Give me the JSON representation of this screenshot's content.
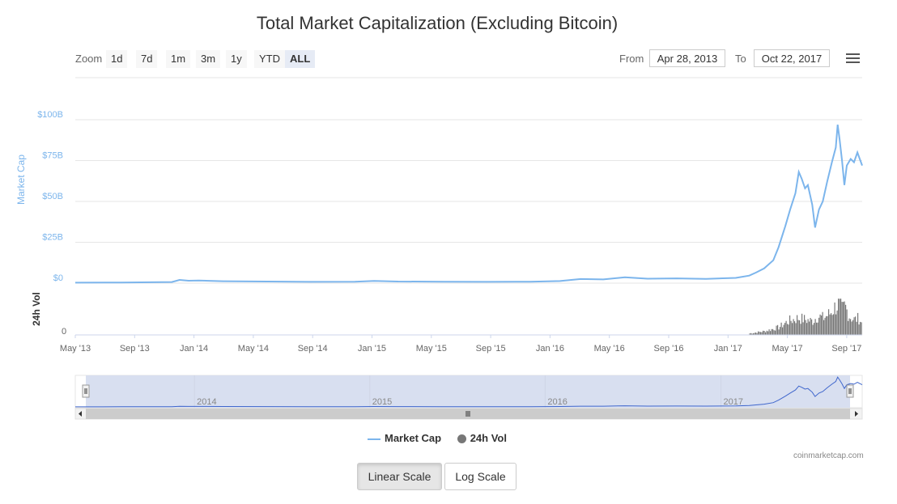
{
  "title": "Total Market Capitalization (Excluding Bitcoin)",
  "zoom": {
    "label": "Zoom",
    "buttons": [
      "1d",
      "7d",
      "1m",
      "3m",
      "1y",
      "YTD",
      "ALL"
    ],
    "active": "ALL"
  },
  "range": {
    "from_label": "From",
    "from_value": "Apr 28, 2013",
    "to_label": "To",
    "to_value": "Oct 22, 2017"
  },
  "legend": {
    "market_cap": "Market Cap",
    "volume": "24h Vol"
  },
  "credit": "coinmarketcap.com",
  "scale_buttons": {
    "linear": "Linear Scale",
    "log": "Log Scale"
  },
  "colors": {
    "market_cap_line": "#7cb5ec",
    "volume_bars": "#777777",
    "navigator_fill": "#d4dbee",
    "navigator_line": "#3f66cc"
  },
  "chart_data": {
    "type": "line",
    "title": "Total Market Capitalization (Excluding Bitcoin)",
    "ylabel": "Market Cap",
    "ylabel2": "24h Vol",
    "y_ticks": [
      "$0",
      "$25B",
      "$50B",
      "$75B",
      "$100B"
    ],
    "y_tick_values": [
      0,
      25,
      50,
      75,
      100
    ],
    "ylim": [
      0,
      100
    ],
    "vol_tick": "0",
    "x_ticks": [
      "May '13",
      "Sep '13",
      "Jan '14",
      "May '14",
      "Sep '14",
      "Jan '15",
      "May '15",
      "Sep '15",
      "Jan '16",
      "May '16",
      "Sep '16",
      "Jan '17",
      "May '17",
      "Sep '17"
    ],
    "navigator_labels": [
      "2014",
      "2015",
      "2016",
      "2017"
    ],
    "x_range": [
      "2013-04-28",
      "2017-10-22"
    ],
    "series": [
      {
        "name": "Market Cap",
        "unit": "billions USD",
        "points": [
          [
            "2013-04-28",
            0.3
          ],
          [
            "2013-08-01",
            0.4
          ],
          [
            "2013-11-15",
            0.7
          ],
          [
            "2013-12-01",
            2.0
          ],
          [
            "2013-12-20",
            1.5
          ],
          [
            "2014-01-10",
            1.6
          ],
          [
            "2014-03-01",
            1.2
          ],
          [
            "2014-06-01",
            1.0
          ],
          [
            "2014-09-01",
            0.8
          ],
          [
            "2014-12-01",
            0.9
          ],
          [
            "2015-01-10",
            1.4
          ],
          [
            "2015-03-01",
            1.0
          ],
          [
            "2015-06-01",
            0.9
          ],
          [
            "2015-09-01",
            0.8
          ],
          [
            "2015-12-01",
            0.9
          ],
          [
            "2016-02-01",
            1.3
          ],
          [
            "2016-03-15",
            2.5
          ],
          [
            "2016-05-01",
            2.3
          ],
          [
            "2016-06-15",
            3.6
          ],
          [
            "2016-08-01",
            2.7
          ],
          [
            "2016-10-01",
            2.9
          ],
          [
            "2016-12-01",
            2.6
          ],
          [
            "2017-02-01",
            3.2
          ],
          [
            "2017-03-01",
            4.6
          ],
          [
            "2017-03-15",
            6.5
          ],
          [
            "2017-04-01",
            9.0
          ],
          [
            "2017-04-20",
            14.0
          ],
          [
            "2017-05-01",
            22.0
          ],
          [
            "2017-05-15",
            35.0
          ],
          [
            "2017-05-25",
            45.0
          ],
          [
            "2017-06-05",
            55.0
          ],
          [
            "2017-06-12",
            68.0
          ],
          [
            "2017-06-18",
            64.0
          ],
          [
            "2017-06-25",
            58.0
          ],
          [
            "2017-07-01",
            60.0
          ],
          [
            "2017-07-10",
            48.0
          ],
          [
            "2017-07-16",
            34.0
          ],
          [
            "2017-07-24",
            45.0
          ],
          [
            "2017-08-01",
            50.0
          ],
          [
            "2017-08-10",
            62.0
          ],
          [
            "2017-08-20",
            74.0
          ],
          [
            "2017-08-28",
            83.0
          ],
          [
            "2017-09-01",
            97.0
          ],
          [
            "2017-09-05",
            88.0
          ],
          [
            "2017-09-10",
            75.0
          ],
          [
            "2017-09-15",
            60.0
          ],
          [
            "2017-09-20",
            72.0
          ],
          [
            "2017-09-28",
            76.0
          ],
          [
            "2017-10-05",
            74.0
          ],
          [
            "2017-10-12",
            80.0
          ],
          [
            "2017-10-17",
            76.0
          ],
          [
            "2017-10-22",
            72.0
          ]
        ]
      },
      {
        "name": "24h Vol",
        "unit": "relative",
        "points": [
          [
            "2017-03-01",
            0.05
          ],
          [
            "2017-04-01",
            0.12
          ],
          [
            "2017-05-01",
            0.25
          ],
          [
            "2017-05-20",
            0.45
          ],
          [
            "2017-06-10",
            0.55
          ],
          [
            "2017-06-25",
            0.5
          ],
          [
            "2017-07-10",
            0.45
          ],
          [
            "2017-07-20",
            0.62
          ],
          [
            "2017-08-01",
            0.55
          ],
          [
            "2017-08-15",
            0.7
          ],
          [
            "2017-08-25",
            0.9
          ],
          [
            "2017-09-01",
            1.0
          ],
          [
            "2017-09-10",
            0.8
          ],
          [
            "2017-09-15",
            0.95
          ],
          [
            "2017-09-25",
            0.6
          ],
          [
            "2017-10-05",
            0.5
          ],
          [
            "2017-10-15",
            0.55
          ],
          [
            "2017-10-22",
            0.3
          ]
        ]
      }
    ]
  }
}
